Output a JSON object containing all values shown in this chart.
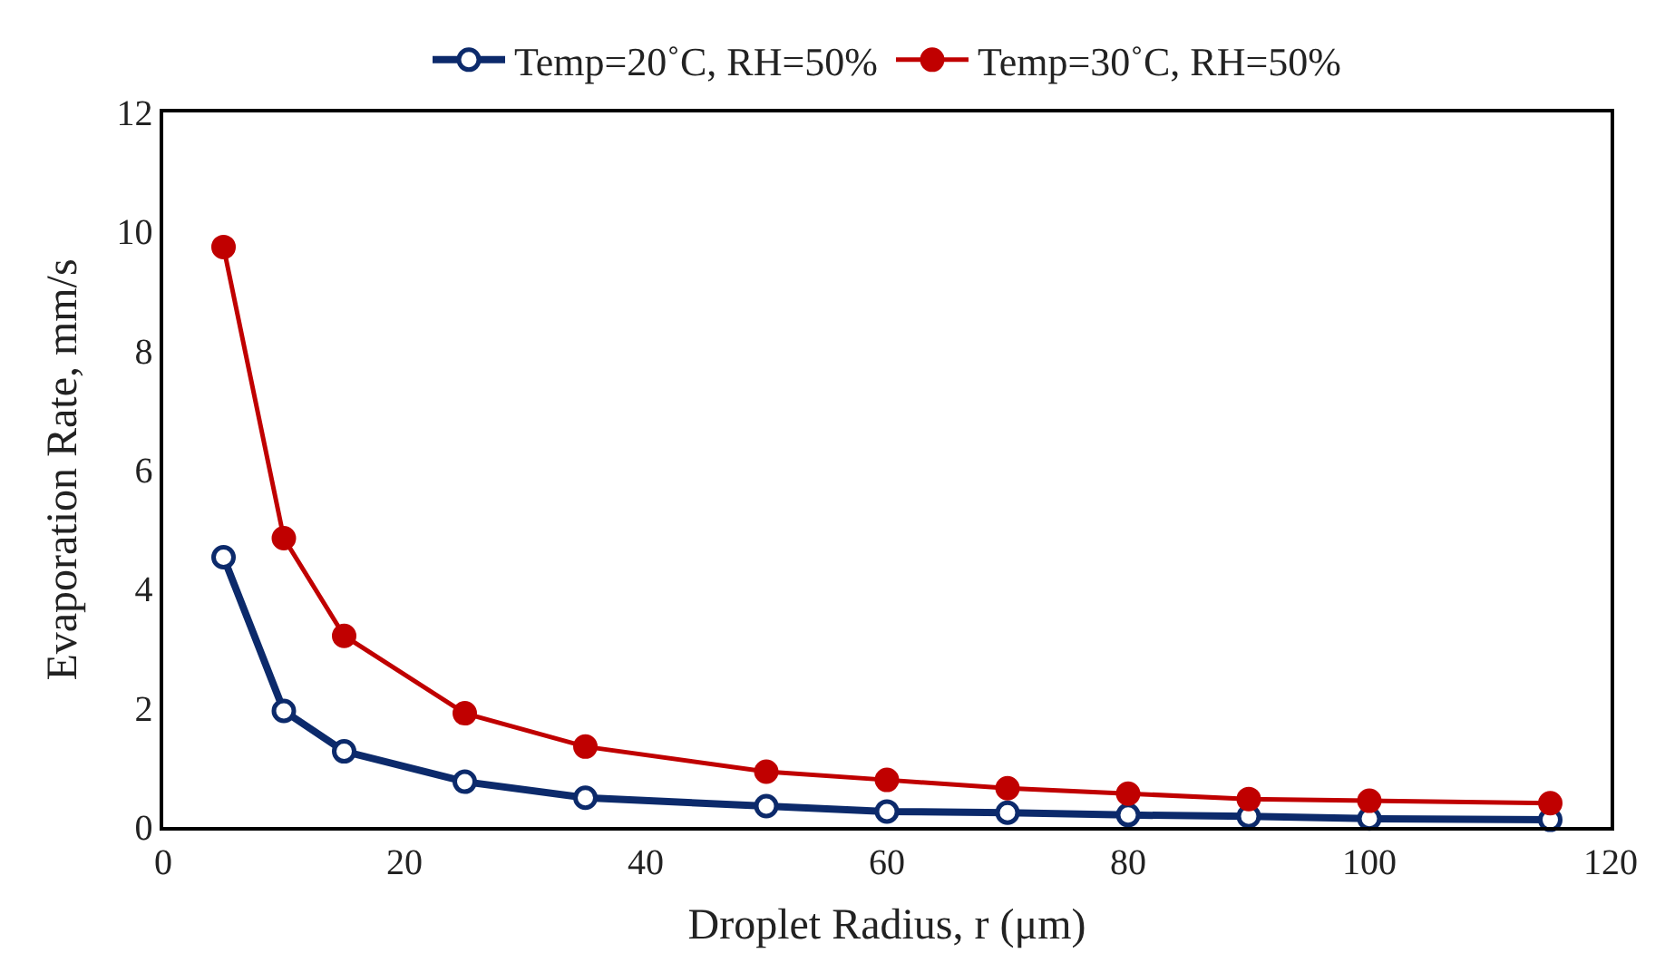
{
  "chart_data": {
    "type": "line",
    "xlabel": "Droplet Radius, r (μm)",
    "ylabel": "Evaporation Rate, mm/s",
    "x": [
      5,
      10,
      15,
      25,
      35,
      50,
      60,
      70,
      80,
      90,
      100,
      115
    ],
    "series": [
      {
        "name": "Temp=20˚C, RH=50%",
        "color": "#0c2a6b",
        "values": [
          4.53,
          1.95,
          1.27,
          0.76,
          0.49,
          0.35,
          0.26,
          0.24,
          0.2,
          0.18,
          0.14,
          0.12
        ]
      },
      {
        "name": "Temp=30˚C, RH=50%",
        "color": "#c00000",
        "values": [
          9.74,
          4.85,
          3.21,
          1.91,
          1.35,
          0.93,
          0.79,
          0.65,
          0.56,
          0.47,
          0.44,
          0.4
        ]
      }
    ],
    "xlim": [
      0,
      120
    ],
    "xticks": [
      0,
      20,
      40,
      60,
      80,
      100,
      120
    ],
    "ylim": [
      0,
      12
    ],
    "yticks": [
      0,
      2,
      4,
      6,
      8,
      10,
      12
    ],
    "marker": "circle",
    "legend": "top",
    "line_style": "solid"
  }
}
